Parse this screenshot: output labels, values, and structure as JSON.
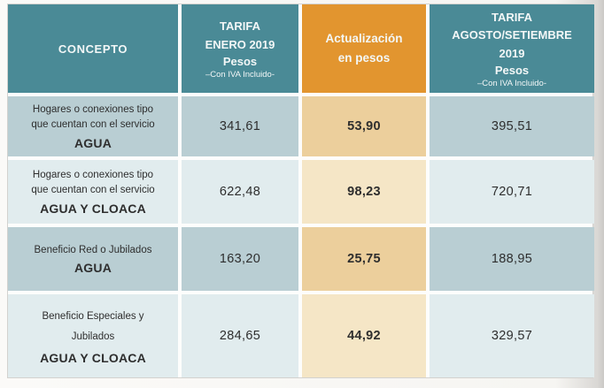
{
  "table": {
    "header": {
      "concepto": "CONCEPTO",
      "enero": {
        "title": "TARIFA\nENERO 2019",
        "subtitle": "Pesos",
        "note": "–Con IVA Incluido-"
      },
      "actualizacion": {
        "title": "Actualización\nen pesos"
      },
      "agosto": {
        "title": "TARIFA\nAGOSTO/SETIEMBRE\n2019",
        "subtitle": "Pesos",
        "note": "–Con IVA Incluido-"
      }
    },
    "rows": [
      {
        "concept": "Hogares o conexiones tipo\nque cuentan con el servicio",
        "service": "AGUA",
        "enero": "341,61",
        "actualizacion": "53,90",
        "agosto": "395,51"
      },
      {
        "concept": "Hogares o conexiones tipo\nque cuentan con el servicio",
        "service": "AGUA Y CLOACA",
        "enero": "622,48",
        "actualizacion": "98,23",
        "agosto": "720,71"
      },
      {
        "concept": "Beneficio Red o Jubilados",
        "service": "AGUA",
        "enero": "163,20",
        "actualizacion": "25,75",
        "agosto": "188,95"
      },
      {
        "concept": "Beneficio Especiales y\nJubilados",
        "service": "AGUA Y CLOACA",
        "enero": "284,65",
        "actualizacion": "44,92",
        "agosto": "329,57"
      }
    ]
  },
  "colors": {
    "teal_header": "#4a8a96",
    "orange_header": "#e2952f",
    "row_dark": "#b9ced3",
    "row_light": "#e1ecee",
    "orange_cell_dark": "#eccf9c",
    "orange_cell_light": "#f5e6c6"
  }
}
